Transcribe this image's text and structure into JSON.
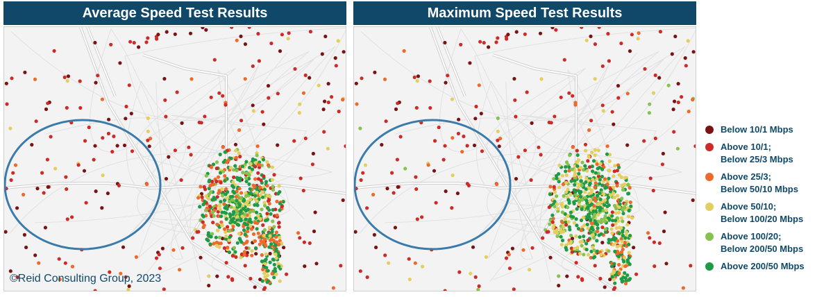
{
  "panels": [
    {
      "title": "Average Speed Test Results",
      "copyright": "©Reid Consulting Group, 2023"
    },
    {
      "title": "Maximum Speed Test Results"
    }
  ],
  "legend": [
    {
      "lines": [
        "Below 10/1 Mbps"
      ],
      "color": "#7a1414"
    },
    {
      "lines": [
        "Above 10/1;",
        "Below 25/3 Mbps"
      ],
      "color": "#cc2b27"
    },
    {
      "lines": [
        "Above 25/3;",
        "Below 50/10 Mbps"
      ],
      "color": "#ee6a2a"
    },
    {
      "lines": [
        "Above 50/10;",
        "Below 100/20 Mbps"
      ],
      "color": "#e3cf5f"
    },
    {
      "lines": [
        "Above 100/20;",
        "Below 200/50 Mbps"
      ],
      "color": "#86c24e"
    },
    {
      "lines": [
        "Above 200/50 Mbps"
      ],
      "color": "#1f9a46"
    }
  ],
  "highlight_color": "#3b7bab"
}
